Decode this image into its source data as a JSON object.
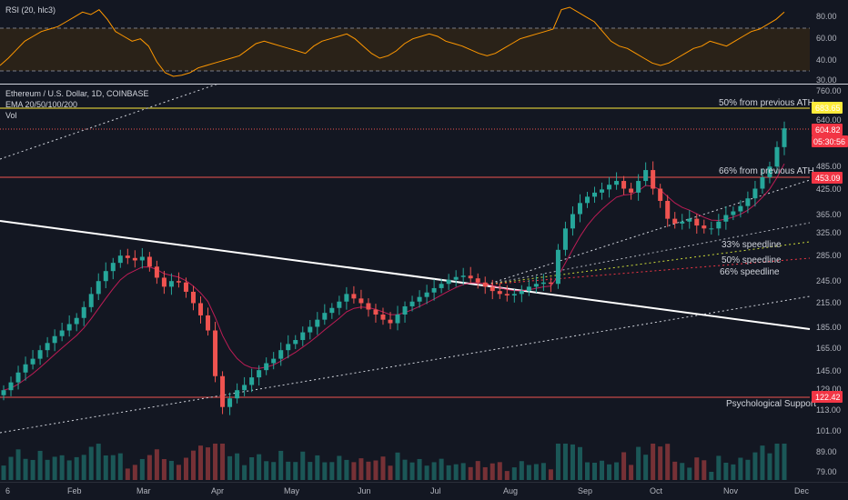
{
  "rsi_panel": {
    "label": "RSI (20, hlc3)",
    "ticks": [
      "80.00",
      "60.00",
      "40.00",
      "30.00"
    ]
  },
  "main_panel": {
    "legend": [
      "Ethereum / U.S. Dollar, 1D, COINBASE",
      "EMA 20/50/100/200",
      "Vol"
    ],
    "price_ticks": [
      "760.00",
      "640.00",
      "485.00",
      "425.00",
      "365.00",
      "325.00",
      "285.00",
      "245.00",
      "215.00",
      "185.00",
      "165.00",
      "145.00",
      "129.00",
      "113.00",
      "101.00",
      "89.00",
      "79.00"
    ],
    "date_ticks": [
      "6",
      "Feb",
      "Mar",
      "Apr",
      "May",
      "Jun",
      "Jul",
      "Aug",
      "Sep",
      "Oct",
      "Nov",
      "Dec"
    ]
  },
  "price_tags": [
    {
      "value": "683.65",
      "bg": "#ffeb3b",
      "fg": "#000000"
    },
    {
      "value": "604.82",
      "bg": "#f23645",
      "fg": "#ffffff"
    },
    {
      "value": "05:30:56",
      "bg": "#f23645",
      "fg": "#ffffff"
    },
    {
      "value": "453.09",
      "bg": "#f23645",
      "fg": "#ffffff"
    },
    {
      "value": "122.42",
      "bg": "#f23645",
      "fg": "#ffffff"
    }
  ],
  "annotations": [
    {
      "text": "50% from previous ATH"
    },
    {
      "text": "66% from previous ATH"
    },
    {
      "text": "33% speedline"
    },
    {
      "text": "50% speedline"
    },
    {
      "text": "66% speedline"
    },
    {
      "text": "Psychological Support"
    }
  ],
  "colors": {
    "up": "#26a69a",
    "down": "#ef5350",
    "rsi": "#ff9800",
    "ema": "#e91e63"
  },
  "chart_data": [
    {
      "type": "line",
      "title": "RSI (20, hlc3)",
      "ylim": [
        30,
        90
      ],
      "bands": [
        70,
        30
      ],
      "series": [
        {
          "values": [
            42,
            48,
            55,
            62,
            66,
            70,
            72,
            74,
            78,
            82,
            86,
            84,
            88,
            80,
            70,
            66,
            62,
            64,
            58,
            45,
            36,
            33,
            34,
            36,
            40,
            42,
            44,
            46,
            48,
            50,
            55,
            60,
            62,
            60,
            58,
            56,
            54,
            52,
            58,
            62,
            64,
            66,
            68,
            64,
            58,
            52,
            48,
            50,
            54,
            60,
            64,
            66,
            68,
            66,
            62,
            60,
            58,
            55,
            52,
            50,
            52,
            56,
            60,
            64,
            66,
            68,
            70,
            72,
            88,
            90,
            86,
            82,
            78,
            70,
            62,
            58,
            56,
            52,
            48,
            44,
            42,
            44,
            48,
            52,
            56,
            58,
            62,
            60,
            58,
            62,
            66,
            70,
            72,
            76,
            80,
            86
          ]
        }
      ]
    },
    {
      "type": "candlestick",
      "title": "Ethereum / U.S. Dollar, 1D, COINBASE",
      "x_range": [
        "2021-01-01",
        "2021-11-24"
      ],
      "ylim": [
        72,
        780
      ],
      "scale": "log",
      "values": [
        124,
        130,
        138,
        145,
        150,
        158,
        165,
        172,
        178,
        185,
        192,
        205,
        222,
        240,
        255,
        268,
        280,
        276,
        272,
        278,
        262,
        245,
        232,
        240,
        238,
        225,
        210,
        195,
        178,
        135,
        112,
        118,
        124,
        128,
        134,
        140,
        146,
        150,
        158,
        164,
        168,
        176,
        182,
        190,
        198,
        204,
        212,
        222,
        216,
        210,
        202,
        196,
        190,
        186,
        196,
        206,
        212,
        218,
        224,
        230,
        236,
        242,
        246,
        248,
        244,
        238,
        232,
        226,
        222,
        220,
        222,
        226,
        232,
        236,
        238,
        236,
        290,
        330,
        360,
        385,
        400,
        410,
        418,
        430,
        440,
        420,
        410,
        440,
        470,
        420,
        390,
        350,
        340,
        344,
        350,
        336,
        330,
        330,
        344,
        358,
        366,
        378,
        396,
        420,
        450,
        480,
        540,
        605
      ],
      "volume_scale": "relative"
    }
  ]
}
